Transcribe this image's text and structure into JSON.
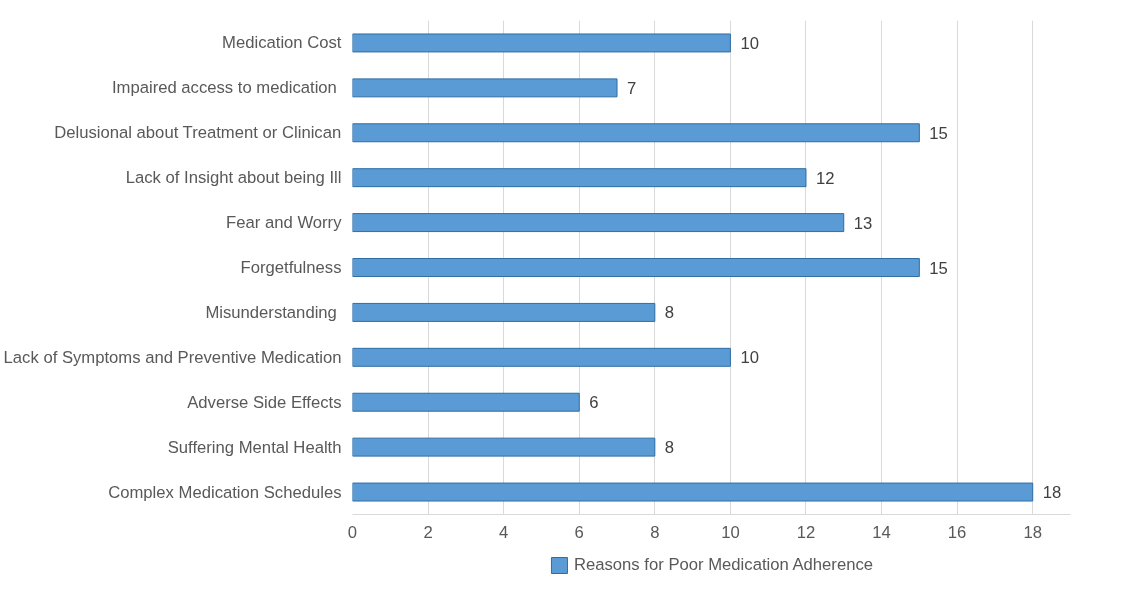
{
  "chart_data": {
    "type": "bar",
    "orientation": "horizontal",
    "categories": [
      "Medication Cost",
      "Impaired access to medication ",
      "Delusional about Treatment or Clinican",
      "Lack of Insight about being Ill",
      "Fear and Worry",
      "Forgetfulness",
      "Misunderstanding ",
      "Lack of Symptoms and Preventive Medication",
      "Adverse Side Effects",
      "Suffering Mental Health",
      "Complex Medication Schedules"
    ],
    "series": [
      {
        "name": "Reasons for Poor Medication Adherence",
        "color": "#5b9bd5",
        "values": [
          10,
          7,
          15,
          12,
          13,
          15,
          8,
          10,
          6,
          8,
          18
        ]
      }
    ],
    "xlim": [
      0,
      19
    ],
    "xticks": [
      0,
      2,
      4,
      6,
      8,
      10,
      12,
      14,
      16,
      18
    ],
    "grid": "x",
    "legend": "bottom",
    "data_labels": true
  }
}
